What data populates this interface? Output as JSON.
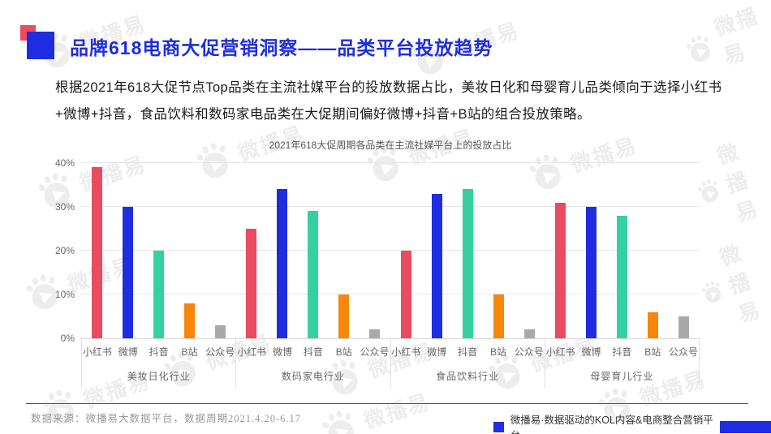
{
  "header": {
    "title": "品牌618电商大促营销洞察——品类平台投放趋势"
  },
  "intro": "根据2021年618大促节点Top品类在主流社媒平台的投放数据占比，美妆日化和母婴育儿品类倾向于选择小红书+微博+抖音，食品饮料和数码家电品类在大促期间偏好微博+抖音+B站的组合投放策略。",
  "chart_data": {
    "type": "bar",
    "title": "2021年618大促周期各品类在主流社媒平台上的投放占比",
    "platforms": [
      "小红书",
      "微博",
      "抖音",
      "B站",
      "公众号"
    ],
    "platform_colors": [
      "#ea4b60",
      "#1f2de0",
      "#35d0a2",
      "#f8860b",
      "#a9a9a9"
    ],
    "categories": [
      "美妆日化行业",
      "数码家电行业",
      "食品饮料行业",
      "母婴育儿行业"
    ],
    "series": [
      {
        "name": "小红书",
        "values": [
          39,
          25,
          20,
          31
        ]
      },
      {
        "name": "微博",
        "values": [
          30,
          34,
          33,
          30
        ]
      },
      {
        "name": "抖音",
        "values": [
          20,
          29,
          34,
          28
        ]
      },
      {
        "name": "B站",
        "values": [
          8,
          10,
          10,
          6
        ]
      },
      {
        "name": "公众号",
        "values": [
          3,
          2,
          2,
          5
        ]
      }
    ],
    "ylabel": "",
    "xlabel": "",
    "ylim": [
      0,
      40
    ],
    "yticks": [
      "0%",
      "10%",
      "20%",
      "30%",
      "40%"
    ],
    "grid": true,
    "legend": false
  },
  "footer": {
    "source": "数据来源：微播易大数据平台，数据周期2021.4.20-6.17",
    "brand": "微播易·数据驱动的KOL内容&电商整合营销平台"
  },
  "watermark": {
    "text": "微播易"
  },
  "colors": {
    "title_blue": "#1f2de0",
    "accent_red": "#ea4b60",
    "bar_red": "#ea4b60",
    "bar_blue": "#1f2de0",
    "bar_teal": "#35d0a2",
    "bar_orange": "#f8860b",
    "bar_gray": "#a9a9a9"
  }
}
